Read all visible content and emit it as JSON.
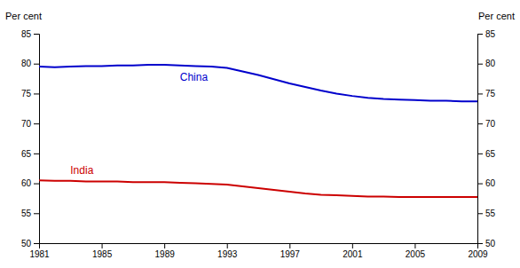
{
  "chart_data": {
    "type": "line",
    "x": [
      1981,
      1982,
      1983,
      1984,
      1985,
      1986,
      1987,
      1988,
      1989,
      1990,
      1991,
      1992,
      1993,
      1994,
      1995,
      1996,
      1997,
      1998,
      1999,
      2000,
      2001,
      2002,
      2003,
      2004,
      2005,
      2006,
      2007,
      2008,
      2009
    ],
    "series": [
      {
        "name": "China",
        "color": "#0000cc",
        "values": [
          79.5,
          79.4,
          79.5,
          79.6,
          79.6,
          79.7,
          79.7,
          79.8,
          79.8,
          79.7,
          79.6,
          79.5,
          79.3,
          78.7,
          78.1,
          77.4,
          76.7,
          76.1,
          75.5,
          75.0,
          74.6,
          74.3,
          74.1,
          74.0,
          73.9,
          73.8,
          73.8,
          73.7,
          73.7
        ]
      },
      {
        "name": "India",
        "color": "#cc0000",
        "values": [
          60.5,
          60.4,
          60.4,
          60.3,
          60.3,
          60.3,
          60.2,
          60.2,
          60.2,
          60.1,
          60.0,
          59.9,
          59.8,
          59.5,
          59.2,
          58.9,
          58.6,
          58.3,
          58.1,
          58.0,
          57.9,
          57.8,
          57.8,
          57.7,
          57.7,
          57.7,
          57.7,
          57.7,
          57.7
        ]
      }
    ],
    "xlim": [
      1981,
      2009
    ],
    "xticks": [
      1981,
      1985,
      1989,
      1993,
      1997,
      2001,
      2005,
      2009
    ],
    "ylim": [
      50,
      85
    ],
    "yticks": [
      50,
      55,
      60,
      65,
      70,
      75,
      80,
      85
    ],
    "y2lim": [
      50,
      85
    ],
    "y2ticks": [
      50,
      55,
      60,
      65,
      70,
      75,
      80,
      85
    ],
    "ylabel": "Per cent",
    "y2label": "Per cent",
    "grid": false
  }
}
